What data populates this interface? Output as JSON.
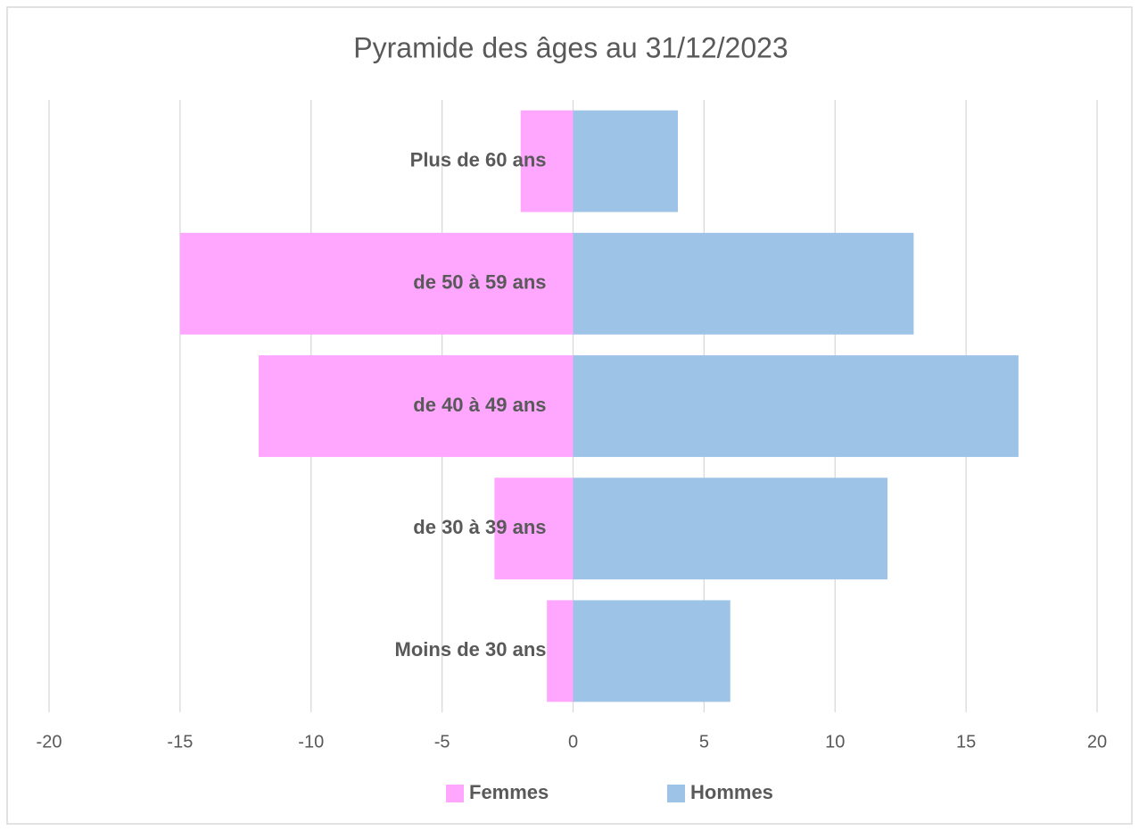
{
  "chart_data": {
    "type": "bar",
    "orientation": "horizontal",
    "title": "Pyramide des âges au 31/12/2023",
    "categories": [
      "Moins de 30 ans",
      "de 30 à 39 ans",
      "de 40 à 49 ans",
      "de 50 à 59 ans",
      "Plus de 60 ans"
    ],
    "series": [
      {
        "name": "Femmes",
        "color": "#ffa6ff",
        "values": [
          -1,
          -3,
          -12,
          -15,
          -2
        ]
      },
      {
        "name": "Hommes",
        "color": "#9dc3e6",
        "values": [
          6,
          12,
          17,
          13,
          4
        ]
      }
    ],
    "xlim": [
      -20,
      20
    ],
    "xticks": [
      -20,
      -15,
      -10,
      -5,
      0,
      5,
      10,
      15,
      20
    ],
    "grid": true,
    "legend": "bottom"
  }
}
